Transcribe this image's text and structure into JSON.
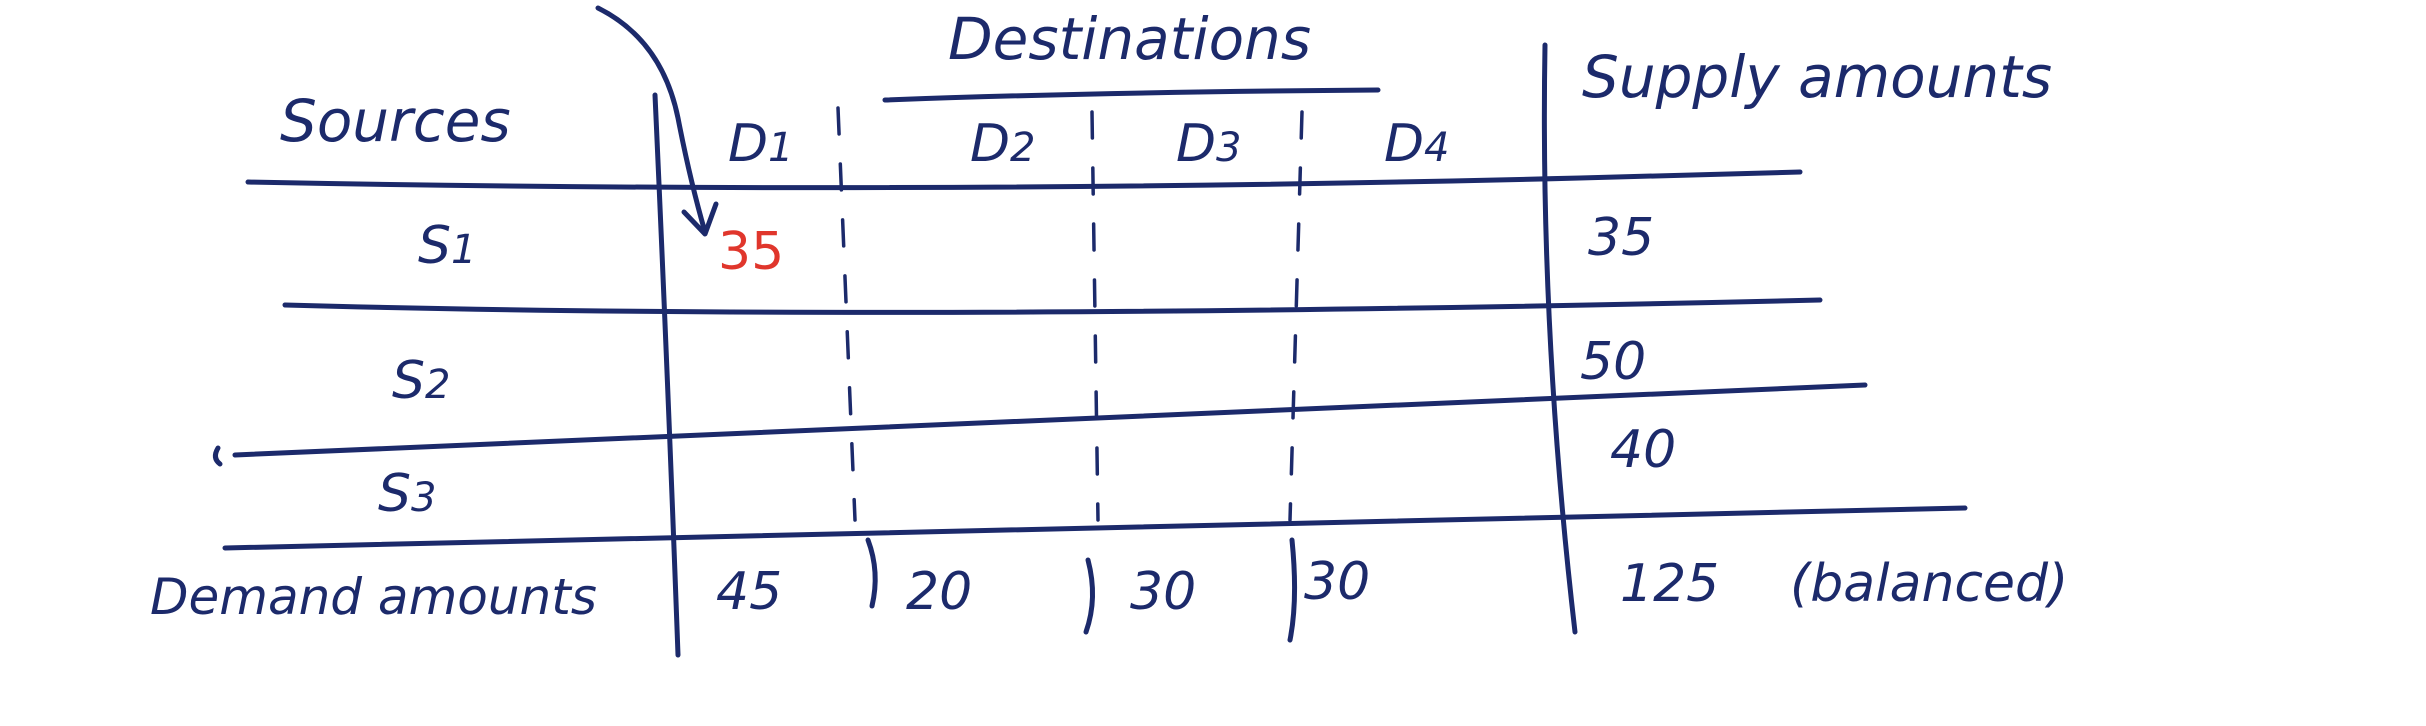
{
  "ink_color": "#1c2a6b",
  "accent_color": "#e0362c",
  "headers": {
    "sources": "Sources",
    "destinations": "Destinations",
    "supply": "Supply amounts",
    "demand": "Demand amounts"
  },
  "destinations": [
    {
      "letter": "D",
      "sub": "1"
    },
    {
      "letter": "D",
      "sub": "2"
    },
    {
      "letter": "D",
      "sub": "3"
    },
    {
      "letter": "D",
      "sub": "4"
    }
  ],
  "sources": [
    {
      "letter": "S",
      "sub": "1"
    },
    {
      "letter": "S",
      "sub": "2"
    },
    {
      "letter": "S",
      "sub": "3"
    }
  ],
  "allocation": {
    "row": "S1",
    "col": "D1",
    "value": "35"
  },
  "supply_values": [
    "35",
    "50",
    "40"
  ],
  "demand_values": [
    "45",
    "20",
    "30",
    "30"
  ],
  "total": "125",
  "total_note": "(balanced)"
}
